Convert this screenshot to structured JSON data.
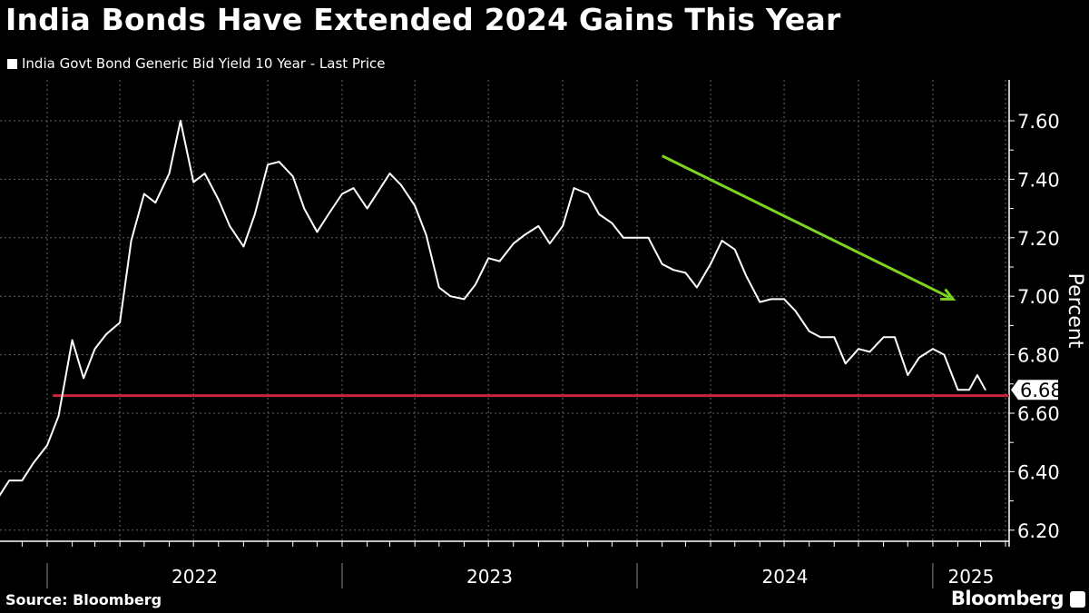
{
  "chart_data": {
    "type": "line",
    "title": "India Bonds Have Extended 2024 Gains This Year",
    "legend": "top-left",
    "series": [
      {
        "name": "India Govt Bond Generic Bid Yield 10 Year - Last Price",
        "color": "#ffffff",
        "points": [
          [
            "2021-11-01",
            6.31
          ],
          [
            "2021-11-15",
            6.37
          ],
          [
            "2021-12-01",
            6.37
          ],
          [
            "2021-12-15",
            6.43
          ],
          [
            "2022-01-01",
            6.49
          ],
          [
            "2022-01-15",
            6.59
          ],
          [
            "2022-02-01",
            6.85
          ],
          [
            "2022-02-15",
            6.72
          ],
          [
            "2022-03-01",
            6.82
          ],
          [
            "2022-03-15",
            6.87
          ],
          [
            "2022-04-01",
            6.91
          ],
          [
            "2022-04-15",
            7.19
          ],
          [
            "2022-05-01",
            7.35
          ],
          [
            "2022-05-15",
            7.32
          ],
          [
            "2022-06-01",
            7.42
          ],
          [
            "2022-06-15",
            7.6
          ],
          [
            "2022-07-01",
            7.39
          ],
          [
            "2022-07-15",
            7.42
          ],
          [
            "2022-08-01",
            7.33
          ],
          [
            "2022-08-15",
            7.24
          ],
          [
            "2022-09-01",
            7.17
          ],
          [
            "2022-09-15",
            7.28
          ],
          [
            "2022-10-01",
            7.45
          ],
          [
            "2022-10-15",
            7.46
          ],
          [
            "2022-11-01",
            7.41
          ],
          [
            "2022-11-15",
            7.3
          ],
          [
            "2022-12-01",
            7.22
          ],
          [
            "2022-12-15",
            7.28
          ],
          [
            "2023-01-01",
            7.35
          ],
          [
            "2023-01-15",
            7.37
          ],
          [
            "2023-02-01",
            7.3
          ],
          [
            "2023-02-15",
            7.36
          ],
          [
            "2023-03-01",
            7.42
          ],
          [
            "2023-03-15",
            7.38
          ],
          [
            "2023-04-01",
            7.31
          ],
          [
            "2023-04-15",
            7.21
          ],
          [
            "2023-05-01",
            7.03
          ],
          [
            "2023-05-15",
            7.0
          ],
          [
            "2023-06-01",
            6.99
          ],
          [
            "2023-06-15",
            7.04
          ],
          [
            "2023-07-01",
            7.13
          ],
          [
            "2023-07-15",
            7.12
          ],
          [
            "2023-08-01",
            7.18
          ],
          [
            "2023-08-15",
            7.21
          ],
          [
            "2023-09-01",
            7.24
          ],
          [
            "2023-09-15",
            7.18
          ],
          [
            "2023-10-01",
            7.24
          ],
          [
            "2023-10-15",
            7.37
          ],
          [
            "2023-11-01",
            7.35
          ],
          [
            "2023-11-15",
            7.28
          ],
          [
            "2023-12-01",
            7.25
          ],
          [
            "2023-12-15",
            7.2
          ],
          [
            "2024-01-01",
            7.2
          ],
          [
            "2024-01-15",
            7.2
          ],
          [
            "2024-02-01",
            7.11
          ],
          [
            "2024-02-15",
            7.09
          ],
          [
            "2024-03-01",
            7.08
          ],
          [
            "2024-03-15",
            7.03
          ],
          [
            "2024-04-01",
            7.11
          ],
          [
            "2024-04-15",
            7.19
          ],
          [
            "2024-05-01",
            7.16
          ],
          [
            "2024-05-15",
            7.07
          ],
          [
            "2024-06-01",
            6.98
          ],
          [
            "2024-06-15",
            6.99
          ],
          [
            "2024-07-01",
            6.99
          ],
          [
            "2024-07-15",
            6.95
          ],
          [
            "2024-08-01",
            6.88
          ],
          [
            "2024-08-15",
            6.86
          ],
          [
            "2024-09-01",
            6.86
          ],
          [
            "2024-09-15",
            6.77
          ],
          [
            "2024-10-01",
            6.82
          ],
          [
            "2024-10-15",
            6.81
          ],
          [
            "2024-11-01",
            6.86
          ],
          [
            "2024-11-15",
            6.86
          ],
          [
            "2024-12-01",
            6.73
          ],
          [
            "2024-12-15",
            6.79
          ],
          [
            "2025-01-01",
            6.82
          ],
          [
            "2025-01-15",
            6.8
          ],
          [
            "2025-02-01",
            6.68
          ],
          [
            "2025-02-15",
            6.68
          ],
          [
            "2025-02-25",
            6.73
          ],
          [
            "2025-03-07",
            6.68
          ]
        ]
      }
    ],
    "last_value_label": "6.68",
    "reference_line": {
      "value": 6.66,
      "start": "2022-01-08",
      "color": "#c8263a"
    },
    "trend_arrow": {
      "from": [
        "2024-02-01",
        7.48
      ],
      "to": [
        "2025-01-26",
        6.99
      ],
      "color": "#7ed321"
    },
    "ylabel": "Percent",
    "ylim": [
      6.15,
      7.75
    ],
    "y_ticks": [
      "6.20",
      "6.40",
      "6.60",
      "6.80",
      "7.00",
      "7.20",
      "7.40",
      "7.60"
    ],
    "x_tick_labels": [
      "2022",
      "2023",
      "2024",
      "2025"
    ],
    "grid": true,
    "y_axis_side": "right"
  },
  "source": "Source: Bloomberg",
  "brand": "Bloomberg"
}
